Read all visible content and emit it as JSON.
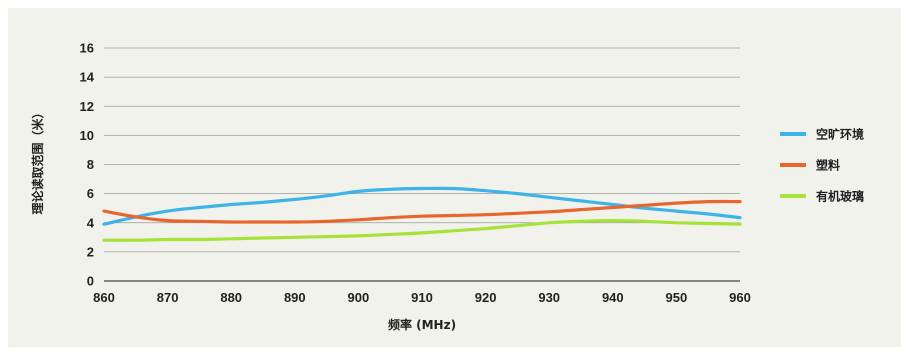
{
  "chart_data": {
    "type": "line",
    "xlabel": "频率 (MHz)",
    "ylabel": "理论读取范围（米）",
    "xlim": [
      860,
      960
    ],
    "ylim": [
      0,
      16
    ],
    "xticks": [
      860,
      870,
      880,
      890,
      900,
      910,
      920,
      930,
      940,
      950,
      960
    ],
    "yticks": [
      0,
      2,
      4,
      6,
      8,
      10,
      12,
      14,
      16
    ],
    "grid": "horizontal",
    "legend_position": "right",
    "x": [
      860,
      865,
      870,
      875,
      880,
      885,
      890,
      895,
      900,
      905,
      910,
      915,
      920,
      925,
      930,
      935,
      940,
      945,
      950,
      955,
      960
    ],
    "series": [
      {
        "name": "空旷环境",
        "color": "#3cb4e8",
        "values": [
          3.9,
          4.4,
          4.8,
          5.05,
          5.25,
          5.4,
          5.6,
          5.85,
          6.15,
          6.3,
          6.35,
          6.35,
          6.2,
          6.0,
          5.75,
          5.5,
          5.25,
          5.0,
          4.8,
          4.6,
          4.35
        ]
      },
      {
        "name": "塑料",
        "color": "#e8662e",
        "values": [
          4.8,
          4.4,
          4.15,
          4.1,
          4.05,
          4.05,
          4.05,
          4.1,
          4.2,
          4.35,
          4.45,
          4.5,
          4.55,
          4.65,
          4.75,
          4.9,
          5.05,
          5.2,
          5.35,
          5.45,
          5.45
        ]
      },
      {
        "name": "有机玻璃",
        "color": "#a6e23a",
        "values": [
          2.8,
          2.8,
          2.85,
          2.85,
          2.9,
          2.95,
          3.0,
          3.05,
          3.1,
          3.2,
          3.3,
          3.45,
          3.6,
          3.8,
          4.0,
          4.1,
          4.15,
          4.1,
          4.0,
          3.95,
          3.9
        ]
      }
    ]
  }
}
